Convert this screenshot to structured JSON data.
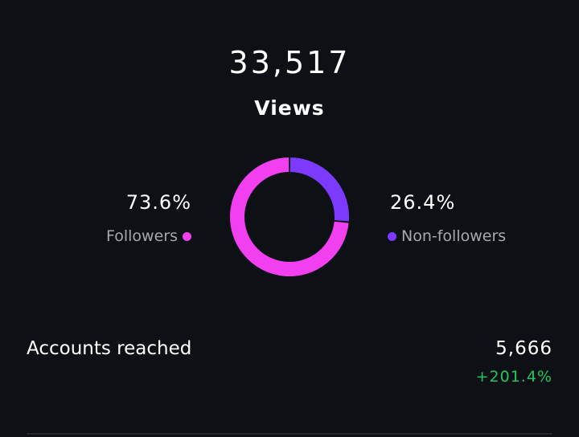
{
  "views": {
    "count": "33,517",
    "label": "Views"
  },
  "breakdown": {
    "followers": {
      "percent": "73.6%",
      "label": "Followers",
      "value": 73.6,
      "color": "#f23ff0"
    },
    "non_followers": {
      "percent": "26.4%",
      "label": "Non-followers",
      "value": 26.4,
      "color": "#7c3aff"
    }
  },
  "accounts_reached": {
    "label": "Accounts reached",
    "value": "5,666",
    "change": "+201.4%",
    "change_color": "#22c55e"
  }
}
